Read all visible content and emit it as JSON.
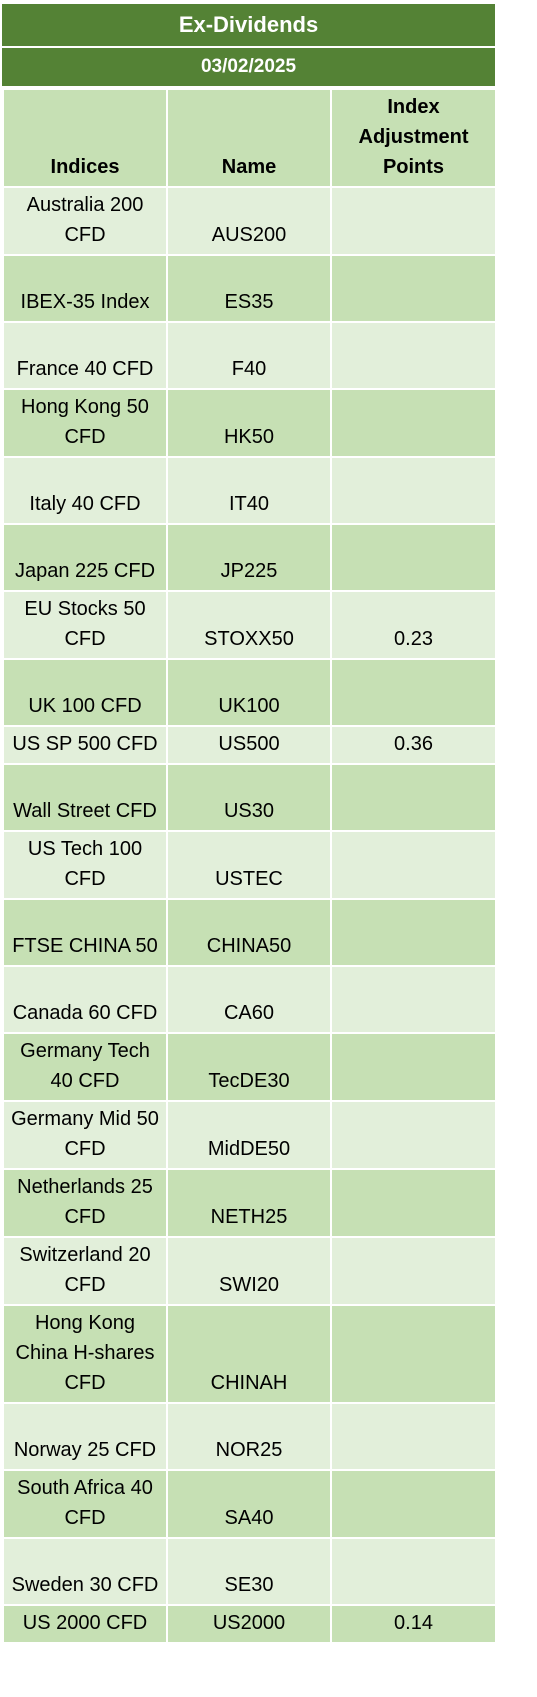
{
  "title": "Ex-Dividends",
  "date": "03/02/2025",
  "columns": {
    "indices": "Indices",
    "name": "Name",
    "adjustment_line1": "Index",
    "adjustment_line2": "Adjustment",
    "adjustment_line3": "Points"
  },
  "rows": [
    {
      "index": "Australia 200 CFD",
      "name": "AUS200",
      "points": ""
    },
    {
      "index": "IBEX-35 Index",
      "name": "ES35",
      "points": ""
    },
    {
      "index": "France 40 CFD",
      "name": "F40",
      "points": ""
    },
    {
      "index": "Hong Kong 50 CFD",
      "name": "HK50",
      "points": ""
    },
    {
      "index": "Italy 40 CFD",
      "name": "IT40",
      "points": ""
    },
    {
      "index": "Japan 225 CFD",
      "name": "JP225",
      "points": ""
    },
    {
      "index": "EU Stocks 50 CFD",
      "name": "STOXX50",
      "points": "0.23"
    },
    {
      "index": "UK 100 CFD",
      "name": "UK100",
      "points": ""
    },
    {
      "index": "US SP 500 CFD",
      "name": "US500",
      "points": "0.36"
    },
    {
      "index": "Wall Street CFD",
      "name": "US30",
      "points": ""
    },
    {
      "index": "US Tech 100 CFD",
      "name": "USTEC",
      "points": ""
    },
    {
      "index": "FTSE CHINA 50",
      "name": "CHINA50",
      "points": ""
    },
    {
      "index": "Canada 60 CFD",
      "name": "CA60",
      "points": ""
    },
    {
      "index": "Germany Tech 40 CFD",
      "name": "TecDE30",
      "points": ""
    },
    {
      "index": "Germany Mid 50 CFD",
      "name": "MidDE50",
      "points": ""
    },
    {
      "index": "Netherlands 25 CFD",
      "name": "NETH25",
      "points": ""
    },
    {
      "index": "Switzerland 20 CFD",
      "name": "SWI20",
      "points": ""
    },
    {
      "index": "Hong Kong China H-shares CFD",
      "name": "CHINAH",
      "points": ""
    },
    {
      "index": "Norway 25 CFD",
      "name": "NOR25",
      "points": ""
    },
    {
      "index": "South Africa 40 CFD",
      "name": "SA40",
      "points": ""
    },
    {
      "index": "Sweden 30 CFD",
      "name": "SE30",
      "points": ""
    },
    {
      "index": "US 2000 CFD",
      "name": "US2000",
      "points": "0.14"
    }
  ]
}
